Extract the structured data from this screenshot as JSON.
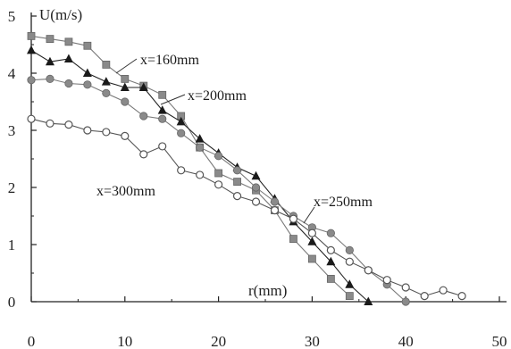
{
  "chart_data": {
    "type": "line",
    "title": "",
    "xlabel": "r(mm)",
    "ylabel": "U(m/s)",
    "xlim": [
      0,
      50
    ],
    "ylim": [
      0,
      5
    ],
    "x_ticks": [
      0,
      10,
      20,
      30,
      40,
      50
    ],
    "y_ticks": [
      0,
      1,
      2,
      3,
      4,
      5
    ],
    "grid": false,
    "legend": "inline",
    "series": [
      {
        "name": "x=160mm",
        "marker": "square",
        "color": "#7a7a7a",
        "points": [
          [
            0,
            4.65
          ],
          [
            2,
            4.6
          ],
          [
            4,
            4.55
          ],
          [
            6,
            4.48
          ],
          [
            8,
            4.15
          ],
          [
            10,
            3.9
          ],
          [
            12,
            3.78
          ],
          [
            14,
            3.62
          ],
          [
            16,
            3.25
          ],
          [
            18,
            2.7
          ],
          [
            20,
            2.25
          ],
          [
            22,
            2.1
          ],
          [
            24,
            1.95
          ],
          [
            26,
            1.6
          ],
          [
            28,
            1.1
          ],
          [
            30,
            0.75
          ],
          [
            32,
            0.4
          ],
          [
            34,
            0.1
          ]
        ]
      },
      {
        "name": "x=200mm",
        "marker": "triangle",
        "color": "#222222",
        "points": [
          [
            0,
            4.4
          ],
          [
            2,
            4.2
          ],
          [
            4,
            4.25
          ],
          [
            6,
            4.0
          ],
          [
            8,
            3.85
          ],
          [
            10,
            3.75
          ],
          [
            12,
            3.75
          ],
          [
            14,
            3.35
          ],
          [
            16,
            3.15
          ],
          [
            18,
            2.85
          ],
          [
            20,
            2.6
          ],
          [
            22,
            2.35
          ],
          [
            24,
            2.2
          ],
          [
            26,
            1.8
          ],
          [
            28,
            1.4
          ],
          [
            30,
            1.05
          ],
          [
            32,
            0.7
          ],
          [
            34,
            0.3
          ],
          [
            36,
            0.0
          ]
        ]
      },
      {
        "name": "x=250mm",
        "marker": "circle-filled",
        "color": "#7a7a7a",
        "points": [
          [
            0,
            3.88
          ],
          [
            2,
            3.9
          ],
          [
            4,
            3.82
          ],
          [
            6,
            3.8
          ],
          [
            8,
            3.65
          ],
          [
            10,
            3.5
          ],
          [
            12,
            3.25
          ],
          [
            14,
            3.2
          ],
          [
            16,
            2.95
          ],
          [
            18,
            2.7
          ],
          [
            20,
            2.55
          ],
          [
            22,
            2.3
          ],
          [
            24,
            2.0
          ],
          [
            26,
            1.75
          ],
          [
            28,
            1.5
          ],
          [
            30,
            1.3
          ],
          [
            32,
            1.2
          ],
          [
            34,
            0.9
          ],
          [
            36,
            0.55
          ],
          [
            38,
            0.3
          ],
          [
            40,
            0.0
          ]
        ]
      },
      {
        "name": "x=300mm",
        "marker": "circle-open",
        "color": "#555555",
        "points": [
          [
            0,
            3.2
          ],
          [
            2,
            3.12
          ],
          [
            4,
            3.1
          ],
          [
            6,
            3.0
          ],
          [
            8,
            2.97
          ],
          [
            10,
            2.9
          ],
          [
            12,
            2.58
          ],
          [
            14,
            2.72
          ],
          [
            16,
            2.3
          ],
          [
            18,
            2.22
          ],
          [
            20,
            2.05
          ],
          [
            22,
            1.85
          ],
          [
            24,
            1.75
          ],
          [
            26,
            1.6
          ],
          [
            28,
            1.45
          ],
          [
            30,
            1.2
          ],
          [
            32,
            0.9
          ],
          [
            34,
            0.7
          ],
          [
            36,
            0.55
          ],
          [
            38,
            0.38
          ],
          [
            40,
            0.25
          ],
          [
            42,
            0.1
          ],
          [
            44,
            0.2
          ],
          [
            46,
            0.1
          ]
        ]
      }
    ],
    "annotations": [
      {
        "text": "x=160mm",
        "series": "x=160mm"
      },
      {
        "text": "x=200mm",
        "series": "x=200mm"
      },
      {
        "text": "x=250mm",
        "series": "x=250mm"
      },
      {
        "text": "x=300mm",
        "series": "x=300mm"
      }
    ]
  }
}
